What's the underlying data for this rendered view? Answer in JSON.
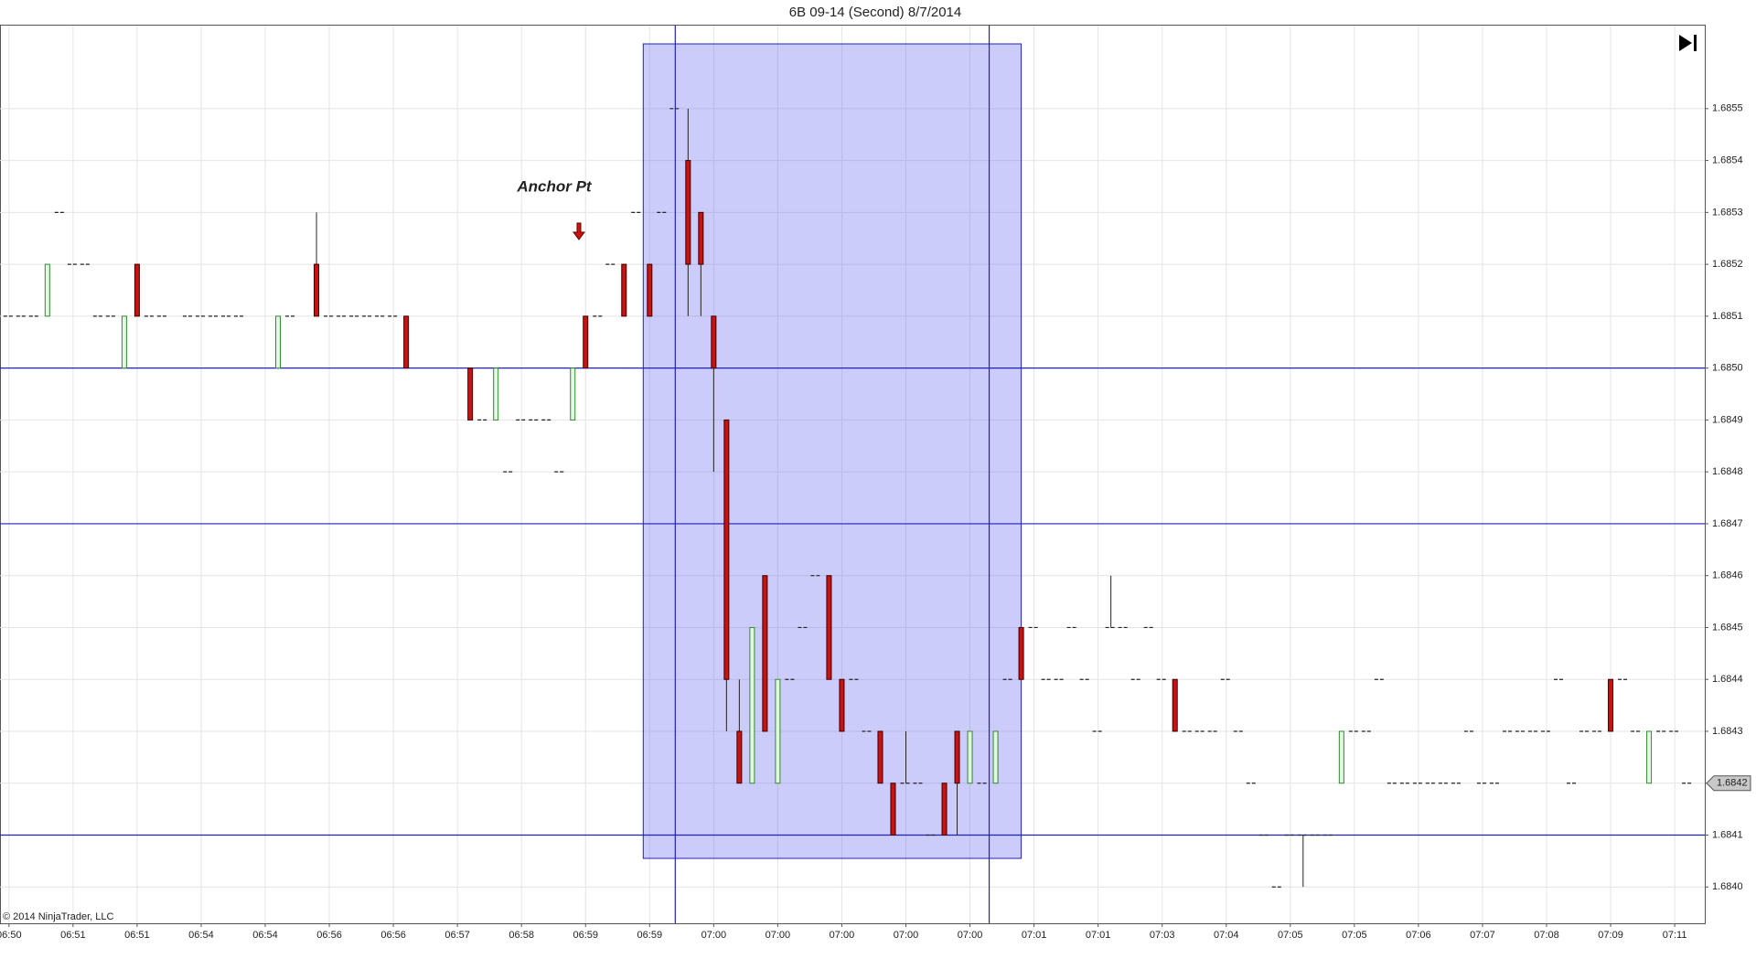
{
  "chart_data": {
    "type": "candlestick",
    "title": "6B 09-14 (Second)  8/7/2014",
    "copyright": "© 2014 NinjaTrader, LLC",
    "annotations": [
      {
        "text": "Anchor Pt"
      }
    ],
    "last_price": {
      "value": 1.6842,
      "label": "1.6842"
    },
    "up_color": "#2e8b2e",
    "down_color": "#cc1111",
    "ylim": [
      1.68393,
      1.68566
    ],
    "yticks": [
      {
        "value": 1.684,
        "label": "1.6840"
      },
      {
        "value": 1.6841,
        "label": "1.6841"
      },
      {
        "value": 1.6842,
        "label": "1.6842"
      },
      {
        "value": 1.6843,
        "label": "1.6843"
      },
      {
        "value": 1.6844,
        "label": "1.6844"
      },
      {
        "value": 1.6845,
        "label": "1.6845"
      },
      {
        "value": 1.6846,
        "label": "1.6846"
      },
      {
        "value": 1.6847,
        "label": "1.6847"
      },
      {
        "value": 1.6848,
        "label": "1.6848"
      },
      {
        "value": 1.6849,
        "label": "1.6849"
      },
      {
        "value": 1.685,
        "label": "1.6850"
      },
      {
        "value": 1.6851,
        "label": "1.6851"
      },
      {
        "value": 1.6852,
        "label": "1.6852"
      },
      {
        "value": 1.6853,
        "label": "1.6853"
      },
      {
        "value": 1.6854,
        "label": "1.6854"
      },
      {
        "value": 1.6855,
        "label": "1.6855"
      }
    ],
    "grid": true,
    "hlines": [
      1.685,
      1.6847,
      1.6841
    ],
    "categories": [
      "06:50",
      null,
      null,
      null,
      null,
      "06:51",
      null,
      null,
      null,
      null,
      "06:51",
      null,
      null,
      null,
      null,
      "06:54",
      null,
      null,
      null,
      null,
      "06:54",
      null,
      null,
      null,
      null,
      "06:56",
      null,
      null,
      null,
      null,
      "06:56",
      null,
      null,
      null,
      null,
      "06:57",
      null,
      null,
      null,
      null,
      "06:58",
      null,
      null,
      null,
      null,
      "06:59",
      null,
      null,
      null,
      null,
      "06:59",
      null,
      null,
      null,
      null,
      "07:00",
      null,
      null,
      null,
      null,
      "07:00",
      null,
      null,
      null,
      null,
      "07:00",
      null,
      null,
      null,
      null,
      "07:00",
      null,
      null,
      null,
      null,
      "07:00",
      null,
      null,
      null,
      null,
      "07:01",
      null,
      null,
      null,
      null,
      "07:01",
      null,
      null,
      null,
      null,
      "07:03",
      null,
      null,
      null,
      null,
      "07:04",
      null,
      null,
      null,
      null,
      "07:05",
      null,
      null,
      null,
      null,
      "07:05",
      null,
      null,
      null,
      null,
      "07:06",
      null,
      null,
      null,
      null,
      "07:07",
      null,
      null,
      null,
      null,
      "07:08",
      null,
      null,
      null,
      null,
      "07:09",
      null,
      null,
      null,
      null,
      "07:11",
      null,
      null
    ],
    "candles": [
      [
        1.6851,
        1.6851,
        1.6851,
        1.6851
      ],
      [
        1.6851,
        1.6851,
        1.6851,
        1.6851
      ],
      [
        1.6851,
        1.6851,
        1.6851,
        1.6851
      ],
      [
        1.6851,
        1.6852,
        1.6851,
        1.6852
      ],
      [
        1.6853,
        1.6853,
        1.6853,
        1.6853
      ],
      [
        1.6852,
        1.6852,
        1.6852,
        1.6852
      ],
      [
        1.6852,
        1.6852,
        1.6852,
        1.6852
      ],
      [
        1.6851,
        1.6851,
        1.6851,
        1.6851
      ],
      [
        1.6851,
        1.6851,
        1.6851,
        1.6851
      ],
      [
        1.685,
        1.6851,
        1.685,
        1.6851
      ],
      [
        1.6852,
        1.6852,
        1.6851,
        1.6851
      ],
      [
        1.6851,
        1.6851,
        1.6851,
        1.6851
      ],
      [
        1.6851,
        1.6851,
        1.6851,
        1.6851
      ],
      null,
      [
        1.6851,
        1.6851,
        1.6851,
        1.6851
      ],
      [
        1.6851,
        1.6851,
        1.6851,
        1.6851
      ],
      [
        1.6851,
        1.6851,
        1.6851,
        1.6851
      ],
      [
        1.6851,
        1.6851,
        1.6851,
        1.6851
      ],
      [
        1.6851,
        1.6851,
        1.6851,
        1.6851
      ],
      null,
      null,
      [
        1.685,
        1.6851,
        1.685,
        1.6851
      ],
      [
        1.6851,
        1.6851,
        1.6851,
        1.6851
      ],
      null,
      [
        1.6852,
        1.6853,
        1.6851,
        1.6851
      ],
      [
        1.6851,
        1.6851,
        1.6851,
        1.6851
      ],
      [
        1.6851,
        1.6851,
        1.6851,
        1.6851
      ],
      [
        1.6851,
        1.6851,
        1.6851,
        1.6851
      ],
      [
        1.6851,
        1.6851,
        1.6851,
        1.6851
      ],
      [
        1.6851,
        1.6851,
        1.6851,
        1.6851
      ],
      [
        1.6851,
        1.6851,
        1.6851,
        1.6851
      ],
      [
        1.6851,
        1.6851,
        1.685,
        1.685
      ],
      null,
      null,
      null,
      null,
      [
        1.685,
        1.685,
        1.6849,
        1.6849
      ],
      [
        1.6849,
        1.6849,
        1.6849,
        1.6849
      ],
      [
        1.6849,
        1.685,
        1.6849,
        1.685
      ],
      [
        1.6848,
        1.6848,
        1.6848,
        1.6848
      ],
      [
        1.6849,
        1.6849,
        1.6849,
        1.6849
      ],
      [
        1.6849,
        1.6849,
        1.6849,
        1.6849
      ],
      [
        1.6849,
        1.6849,
        1.6849,
        1.6849
      ],
      [
        1.6848,
        1.6848,
        1.6848,
        1.6848
      ],
      [
        1.6849,
        1.685,
        1.6849,
        1.685
      ],
      [
        1.6851,
        1.6851,
        1.685,
        1.685
      ],
      [
        1.6851,
        1.6851,
        1.6851,
        1.6851
      ],
      [
        1.6852,
        1.6852,
        1.6852,
        1.6852
      ],
      [
        1.6852,
        1.6852,
        1.6851,
        1.6851
      ],
      [
        1.6853,
        1.6853,
        1.6853,
        1.6853
      ],
      [
        1.6852,
        1.6852,
        1.6851,
        1.6851
      ],
      [
        1.6853,
        1.6853,
        1.6853,
        1.6853
      ],
      [
        1.6855,
        1.6855,
        1.6855,
        1.6855
      ],
      [
        1.6854,
        1.6855,
        1.6851,
        1.6852
      ],
      [
        1.6853,
        1.6853,
        1.6851,
        1.6852
      ],
      [
        1.6851,
        1.6851,
        1.6848,
        1.685
      ],
      [
        1.6849,
        1.6849,
        1.6843,
        1.6844
      ],
      [
        1.6843,
        1.6844,
        1.6842,
        1.6842
      ],
      [
        1.6842,
        1.6845,
        1.6842,
        1.6845
      ],
      [
        1.6846,
        1.6846,
        1.6843,
        1.6843
      ],
      [
        1.6842,
        1.6844,
        1.6842,
        1.6844
      ],
      [
        1.6844,
        1.6844,
        1.6844,
        1.6844
      ],
      [
        1.6845,
        1.6845,
        1.6845,
        1.6845
      ],
      [
        1.6846,
        1.6846,
        1.6846,
        1.6846
      ],
      [
        1.6846,
        1.6846,
        1.6844,
        1.6844
      ],
      [
        1.6844,
        1.6844,
        1.6843,
        1.6843
      ],
      [
        1.6844,
        1.6844,
        1.6844,
        1.6844
      ],
      [
        1.6843,
        1.6843,
        1.6843,
        1.6843
      ],
      [
        1.6843,
        1.6843,
        1.6842,
        1.6842
      ],
      [
        1.6842,
        1.6842,
        1.6841,
        1.6841
      ],
      [
        1.6842,
        1.6843,
        1.6842,
        1.6842
      ],
      [
        1.6842,
        1.6842,
        1.6842,
        1.6842
      ],
      [
        1.6841,
        1.6841,
        1.6841,
        1.6841
      ],
      [
        1.6842,
        1.6842,
        1.6841,
        1.6841
      ],
      [
        1.6843,
        1.6843,
        1.6841,
        1.6842
      ],
      [
        1.6842,
        1.6843,
        1.6842,
        1.6843
      ],
      [
        1.6842,
        1.6842,
        1.6842,
        1.6842
      ],
      [
        1.6842,
        1.6843,
        1.6842,
        1.6843
      ],
      [
        1.6844,
        1.6844,
        1.6844,
        1.6844
      ],
      [
        1.6845,
        1.6845,
        1.6844,
        1.6844
      ],
      [
        1.6845,
        1.6845,
        1.6845,
        1.6845
      ],
      [
        1.6844,
        1.6844,
        1.6844,
        1.6844
      ],
      [
        1.6844,
        1.6844,
        1.6844,
        1.6844
      ],
      [
        1.6845,
        1.6845,
        1.6845,
        1.6845
      ],
      [
        1.6844,
        1.6844,
        1.6844,
        1.6844
      ],
      [
        1.6843,
        1.6843,
        1.6843,
        1.6843
      ],
      [
        1.6845,
        1.6846,
        1.6845,
        1.6845
      ],
      [
        1.6845,
        1.6845,
        1.6845,
        1.6845
      ],
      [
        1.6844,
        1.6844,
        1.6844,
        1.6844
      ],
      [
        1.6845,
        1.6845,
        1.6845,
        1.6845
      ],
      [
        1.6844,
        1.6844,
        1.6844,
        1.6844
      ],
      [
        1.6844,
        1.6844,
        1.6843,
        1.6843
      ],
      [
        1.6843,
        1.6843,
        1.6843,
        1.6843
      ],
      [
        1.6843,
        1.6843,
        1.6843,
        1.6843
      ],
      [
        1.6843,
        1.6843,
        1.6843,
        1.6843
      ],
      [
        1.6844,
        1.6844,
        1.6844,
        1.6844
      ],
      [
        1.6843,
        1.6843,
        1.6843,
        1.6843
      ],
      [
        1.6842,
        1.6842,
        1.6842,
        1.6842
      ],
      [
        1.6841,
        1.6841,
        1.6841,
        1.6841
      ],
      [
        1.684,
        1.684,
        1.684,
        1.684
      ],
      [
        1.6841,
        1.6841,
        1.6841,
        1.6841
      ],
      [
        1.6841,
        1.6841,
        1.684,
        1.6841
      ],
      [
        1.6841,
        1.6841,
        1.6841,
        1.6841
      ],
      [
        1.6841,
        1.6841,
        1.6841,
        1.6841
      ],
      [
        1.6842,
        1.6843,
        1.6842,
        1.6843
      ],
      [
        1.6843,
        1.6843,
        1.6843,
        1.6843
      ],
      [
        1.6843,
        1.6843,
        1.6843,
        1.6843
      ],
      [
        1.6844,
        1.6844,
        1.6844,
        1.6844
      ],
      [
        1.6842,
        1.6842,
        1.6842,
        1.6842
      ],
      [
        1.6842,
        1.6842,
        1.6842,
        1.6842
      ],
      [
        1.6842,
        1.6842,
        1.6842,
        1.6842
      ],
      [
        1.6842,
        1.6842,
        1.6842,
        1.6842
      ],
      [
        1.6842,
        1.6842,
        1.6842,
        1.6842
      ],
      [
        1.6842,
        1.6842,
        1.6842,
        1.6842
      ],
      [
        1.6843,
        1.6843,
        1.6843,
        1.6843
      ],
      [
        1.6842,
        1.6842,
        1.6842,
        1.6842
      ],
      [
        1.6842,
        1.6842,
        1.6842,
        1.6842
      ],
      [
        1.6843,
        1.6843,
        1.6843,
        1.6843
      ],
      [
        1.6843,
        1.6843,
        1.6843,
        1.6843
      ],
      [
        1.6843,
        1.6843,
        1.6843,
        1.6843
      ],
      [
        1.6843,
        1.6843,
        1.6843,
        1.6843
      ],
      [
        1.6844,
        1.6844,
        1.6844,
        1.6844
      ],
      [
        1.6842,
        1.6842,
        1.6842,
        1.6842
      ],
      [
        1.6843,
        1.6843,
        1.6843,
        1.6843
      ],
      [
        1.6843,
        1.6843,
        1.6843,
        1.6843
      ],
      [
        1.6844,
        1.6844,
        1.6843,
        1.6843
      ],
      [
        1.6844,
        1.6844,
        1.6844,
        1.6844
      ],
      [
        1.6843,
        1.6843,
        1.6843,
        1.6843
      ],
      [
        1.6842,
        1.6843,
        1.6842,
        1.6843
      ],
      [
        1.6843,
        1.6843,
        1.6843,
        1.6843
      ],
      [
        1.6843,
        1.6843,
        1.6843,
        1.6843
      ],
      [
        1.6842,
        1.6842,
        1.6842,
        1.6842
      ],
      null
    ]
  }
}
